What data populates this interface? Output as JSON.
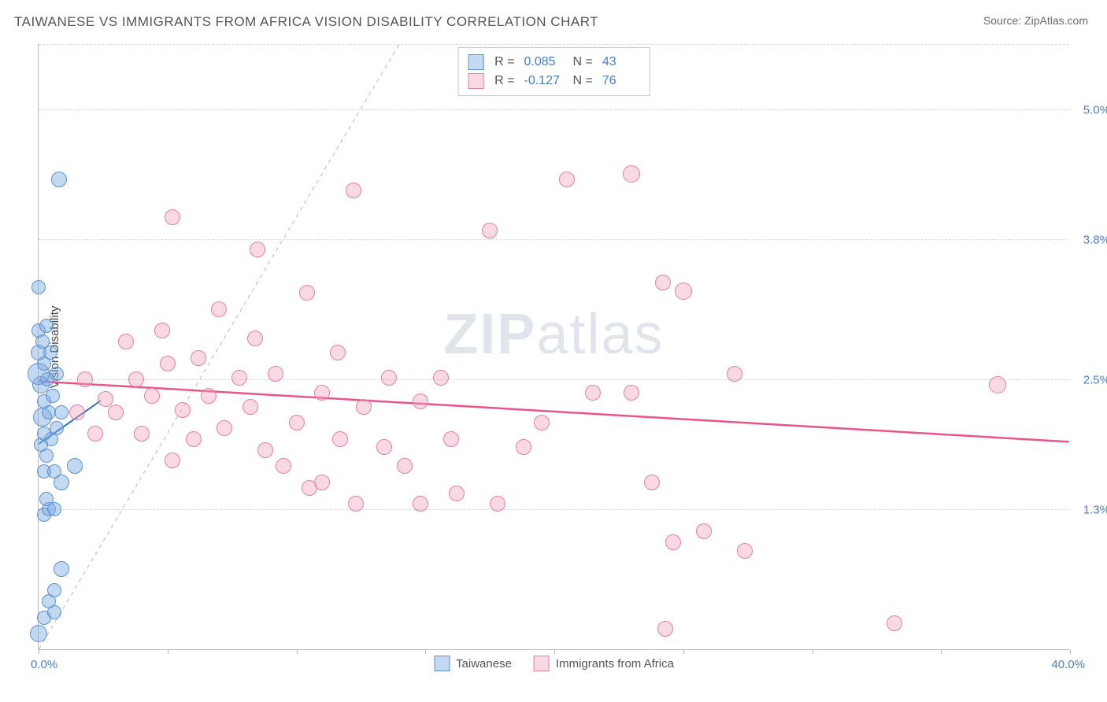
{
  "title": "TAIWANESE VS IMMIGRANTS FROM AFRICA VISION DISABILITY CORRELATION CHART",
  "source": "Source: ZipAtlas.com",
  "watermark_bold": "ZIP",
  "watermark_rest": "atlas",
  "chart": {
    "type": "scatter",
    "y_axis_title": "Vision Disability",
    "background_color": "#ffffff",
    "grid_color": "#d8d8da",
    "axis_color": "#b8b8bc",
    "tick_label_color": "#4a7ec9",
    "xlim": [
      0,
      40
    ],
    "ylim": [
      0,
      5.6
    ],
    "x_ticks": [
      0,
      5,
      10,
      15,
      20,
      25,
      30,
      35,
      40
    ],
    "x_tick_labels": {
      "min": "0.0%",
      "max": "40.0%"
    },
    "y_gridlines": [
      1.3,
      2.5,
      3.8,
      5.0
    ],
    "y_tick_labels": [
      "1.3%",
      "2.5%",
      "3.8%",
      "5.0%"
    ],
    "marker_base_radius": 9,
    "marker_border_width": 1.5,
    "diagonal_guide": {
      "from": [
        0,
        0
      ],
      "to": [
        14,
        5.6
      ],
      "color": "#b8b8bc",
      "dash": "5,5",
      "width": 1
    },
    "series": [
      {
        "name": "Taiwanese",
        "fill": "rgba(122,168,224,0.45)",
        "stroke": "#5d92d2",
        "R": "0.085",
        "N": "43",
        "trend": {
          "from": [
            0,
            1.9
          ],
          "to": [
            2.4,
            2.3
          ],
          "color": "#2e6fc4",
          "width": 2
        },
        "points": [
          {
            "x": 0.0,
            "y": 0.15,
            "r": 11
          },
          {
            "x": 0.2,
            "y": 0.3,
            "r": 9
          },
          {
            "x": 0.6,
            "y": 0.35,
            "r": 9
          },
          {
            "x": 0.4,
            "y": 0.45,
            "r": 9
          },
          {
            "x": 0.6,
            "y": 0.55,
            "r": 9
          },
          {
            "x": 0.9,
            "y": 0.75,
            "r": 10
          },
          {
            "x": 0.2,
            "y": 1.25,
            "r": 9
          },
          {
            "x": 0.4,
            "y": 1.3,
            "r": 9
          },
          {
            "x": 0.6,
            "y": 1.3,
            "r": 9
          },
          {
            "x": 0.3,
            "y": 1.4,
            "r": 9
          },
          {
            "x": 0.9,
            "y": 1.55,
            "r": 10
          },
          {
            "x": 0.2,
            "y": 1.65,
            "r": 9
          },
          {
            "x": 0.6,
            "y": 1.65,
            "r": 9
          },
          {
            "x": 1.4,
            "y": 1.7,
            "r": 10
          },
          {
            "x": 0.3,
            "y": 1.8,
            "r": 9
          },
          {
            "x": 0.1,
            "y": 1.9,
            "r": 9
          },
          {
            "x": 0.5,
            "y": 1.95,
            "r": 9
          },
          {
            "x": 0.2,
            "y": 2.0,
            "r": 9
          },
          {
            "x": 0.7,
            "y": 2.05,
            "r": 9
          },
          {
            "x": 0.15,
            "y": 2.15,
            "r": 12
          },
          {
            "x": 0.4,
            "y": 2.2,
            "r": 9
          },
          {
            "x": 0.9,
            "y": 2.2,
            "r": 9
          },
          {
            "x": 0.2,
            "y": 2.3,
            "r": 9
          },
          {
            "x": 0.55,
            "y": 2.35,
            "r": 9
          },
          {
            "x": 0.1,
            "y": 2.45,
            "r": 11
          },
          {
            "x": 0.35,
            "y": 2.5,
            "r": 9
          },
          {
            "x": 0.0,
            "y": 2.55,
            "r": 14
          },
          {
            "x": 0.7,
            "y": 2.55,
            "r": 9
          },
          {
            "x": 0.2,
            "y": 2.65,
            "r": 9
          },
          {
            "x": 0.0,
            "y": 2.75,
            "r": 10
          },
          {
            "x": 0.45,
            "y": 2.75,
            "r": 9
          },
          {
            "x": 0.15,
            "y": 2.85,
            "r": 9
          },
          {
            "x": 0.0,
            "y": 2.95,
            "r": 9
          },
          {
            "x": 0.3,
            "y": 3.0,
            "r": 9
          },
          {
            "x": 0.0,
            "y": 3.35,
            "r": 9
          },
          {
            "x": 0.8,
            "y": 4.35,
            "r": 10
          }
        ]
      },
      {
        "name": "Immigrants from Africa",
        "fill": "rgba(240,160,185,0.4)",
        "stroke": "#e37fa1",
        "R": "-0.127",
        "N": "76",
        "trend": {
          "from": [
            0,
            2.48
          ],
          "to": [
            40,
            1.92
          ],
          "color": "#e8558d",
          "width": 2.5
        },
        "points": [
          {
            "x": 24.3,
            "y": 0.2,
            "r": 10
          },
          {
            "x": 33.2,
            "y": 0.25,
            "r": 10
          },
          {
            "x": 27.4,
            "y": 0.92,
            "r": 10
          },
          {
            "x": 24.6,
            "y": 1.0,
            "r": 10
          },
          {
            "x": 25.8,
            "y": 1.1,
            "r": 10
          },
          {
            "x": 12.3,
            "y": 1.35,
            "r": 10
          },
          {
            "x": 14.8,
            "y": 1.35,
            "r": 10
          },
          {
            "x": 17.8,
            "y": 1.35,
            "r": 10
          },
          {
            "x": 16.2,
            "y": 1.45,
            "r": 10
          },
          {
            "x": 10.5,
            "y": 1.5,
            "r": 10
          },
          {
            "x": 11.0,
            "y": 1.55,
            "r": 10
          },
          {
            "x": 23.8,
            "y": 1.55,
            "r": 10
          },
          {
            "x": 9.5,
            "y": 1.7,
            "r": 10
          },
          {
            "x": 14.2,
            "y": 1.7,
            "r": 10
          },
          {
            "x": 5.2,
            "y": 1.75,
            "r": 10
          },
          {
            "x": 8.8,
            "y": 1.85,
            "r": 10
          },
          {
            "x": 13.4,
            "y": 1.88,
            "r": 10
          },
          {
            "x": 18.8,
            "y": 1.88,
            "r": 10
          },
          {
            "x": 6.0,
            "y": 1.95,
            "r": 10
          },
          {
            "x": 11.7,
            "y": 1.95,
            "r": 10
          },
          {
            "x": 16.0,
            "y": 1.95,
            "r": 10
          },
          {
            "x": 2.2,
            "y": 2.0,
            "r": 10
          },
          {
            "x": 4.0,
            "y": 2.0,
            "r": 10
          },
          {
            "x": 7.2,
            "y": 2.05,
            "r": 10
          },
          {
            "x": 10.0,
            "y": 2.1,
            "r": 10
          },
          {
            "x": 19.5,
            "y": 2.1,
            "r": 10
          },
          {
            "x": 1.5,
            "y": 2.2,
            "r": 10
          },
          {
            "x": 3.0,
            "y": 2.2,
            "r": 10
          },
          {
            "x": 5.6,
            "y": 2.22,
            "r": 10
          },
          {
            "x": 8.2,
            "y": 2.25,
            "r": 10
          },
          {
            "x": 12.6,
            "y": 2.25,
            "r": 10
          },
          {
            "x": 14.8,
            "y": 2.3,
            "r": 10
          },
          {
            "x": 2.6,
            "y": 2.32,
            "r": 10
          },
          {
            "x": 4.4,
            "y": 2.35,
            "r": 10
          },
          {
            "x": 6.6,
            "y": 2.35,
            "r": 10
          },
          {
            "x": 11.0,
            "y": 2.38,
            "r": 10
          },
          {
            "x": 21.5,
            "y": 2.38,
            "r": 10
          },
          {
            "x": 23.0,
            "y": 2.38,
            "r": 10
          },
          {
            "x": 37.2,
            "y": 2.45,
            "r": 11
          },
          {
            "x": 1.8,
            "y": 2.5,
            "r": 10
          },
          {
            "x": 3.8,
            "y": 2.5,
            "r": 10
          },
          {
            "x": 7.8,
            "y": 2.52,
            "r": 10
          },
          {
            "x": 13.6,
            "y": 2.52,
            "r": 10
          },
          {
            "x": 15.6,
            "y": 2.52,
            "r": 10
          },
          {
            "x": 9.2,
            "y": 2.55,
            "r": 10
          },
          {
            "x": 27.0,
            "y": 2.55,
            "r": 10
          },
          {
            "x": 5.0,
            "y": 2.65,
            "r": 10
          },
          {
            "x": 6.2,
            "y": 2.7,
            "r": 10
          },
          {
            "x": 11.6,
            "y": 2.75,
            "r": 10
          },
          {
            "x": 3.4,
            "y": 2.85,
            "r": 10
          },
          {
            "x": 8.4,
            "y": 2.88,
            "r": 10
          },
          {
            "x": 4.8,
            "y": 2.95,
            "r": 10
          },
          {
            "x": 7.0,
            "y": 3.15,
            "r": 10
          },
          {
            "x": 10.4,
            "y": 3.3,
            "r": 10
          },
          {
            "x": 25.0,
            "y": 3.32,
            "r": 11
          },
          {
            "x": 24.2,
            "y": 3.4,
            "r": 10
          },
          {
            "x": 8.5,
            "y": 3.7,
            "r": 10
          },
          {
            "x": 17.5,
            "y": 3.88,
            "r": 10
          },
          {
            "x": 5.2,
            "y": 4.0,
            "r": 10
          },
          {
            "x": 12.2,
            "y": 4.25,
            "r": 10
          },
          {
            "x": 23.0,
            "y": 4.4,
            "r": 11
          },
          {
            "x": 20.5,
            "y": 4.35,
            "r": 10
          }
        ]
      }
    ]
  },
  "legend_top": {
    "r_label": "R =",
    "n_label": "N ="
  }
}
